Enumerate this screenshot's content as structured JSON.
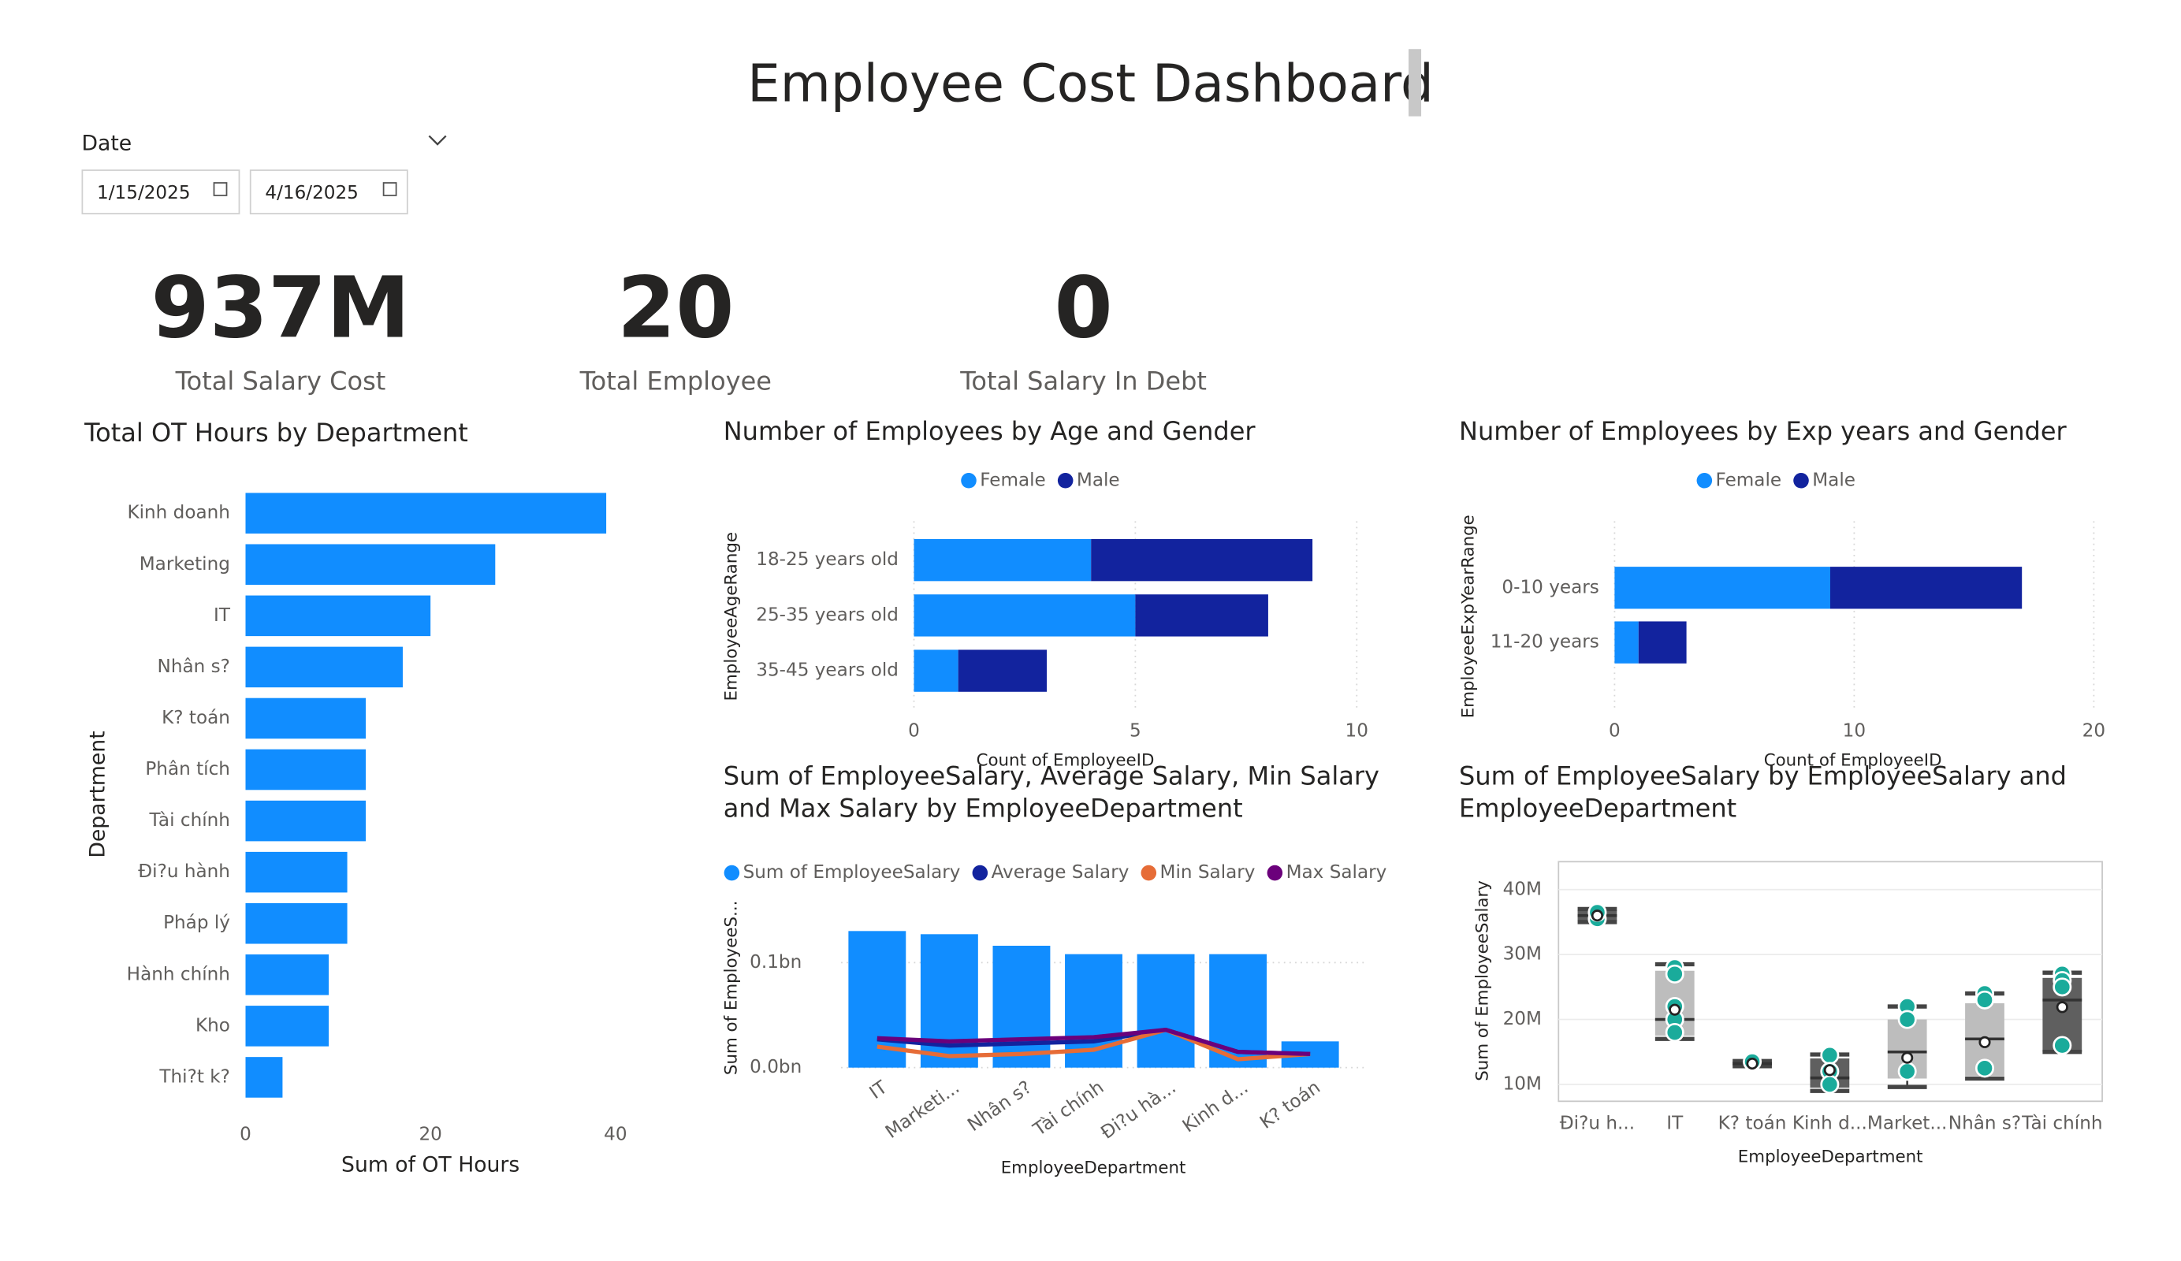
{
  "title": "Employee Cost Dashboard",
  "date_filter": {
    "label": "Date",
    "start": "1/15/2025",
    "end": "4/16/2025"
  },
  "kpis": [
    {
      "value": "937M",
      "label": "Total Salary Cost"
    },
    {
      "value": "20",
      "label": "Total Employee"
    },
    {
      "value": "0",
      "label": "Total Salary In Debt"
    }
  ],
  "chart_data": [
    {
      "type": "bar",
      "title": "Total OT Hours by Department",
      "categories": [
        "Kinh doanh",
        "Marketing",
        "IT",
        "Nhân s?",
        "K? toán",
        "Phân tích",
        "Tài chính",
        "Đi?u hành",
        "Pháp lý",
        "Hành chính",
        "Kho",
        "Thi?t k?"
      ],
      "values": [
        39,
        27,
        20,
        17,
        13,
        13,
        13,
        11,
        11,
        9,
        9,
        4
      ],
      "color": "#118DFF",
      "xlim": [
        0,
        40
      ],
      "xticks": [
        0,
        20,
        40
      ],
      "x_label": "Sum of OT Hours",
      "y_label": "Department",
      "grid": false
    },
    {
      "type": "bar",
      "title": "Number of Employees by Age and Gender",
      "categories": [
        "18-25 years old",
        "25-35 years old",
        "35-45 years old"
      ],
      "series": [
        {
          "name": "Female",
          "color": "#118DFF",
          "values": [
            4,
            5,
            1
          ]
        },
        {
          "name": "Male",
          "color": "#12239E",
          "values": [
            5,
            3,
            2
          ]
        }
      ],
      "xlim": [
        0,
        10
      ],
      "xticks": [
        0,
        5,
        10
      ],
      "x_label": "Count of EmployeeID",
      "y_label": "EmployeeAgeRange",
      "grid": true,
      "legend": "top-center"
    },
    {
      "type": "bar",
      "title": "Number of Employees by Exp years and Gender",
      "categories": [
        "0-10 years",
        "11-20 years"
      ],
      "series": [
        {
          "name": "Female",
          "color": "#118DFF",
          "values": [
            9,
            1
          ]
        },
        {
          "name": "Male",
          "color": "#12239E",
          "values": [
            8,
            2
          ]
        }
      ],
      "xlim": [
        0,
        20
      ],
      "xticks": [
        0,
        10,
        20
      ],
      "x_label": "Count of EmployeeID",
      "y_label": "EmployeeExpYearRange",
      "grid": true,
      "legend": "top-center"
    },
    {
      "type": "combo",
      "title": "Sum of EmployeeSalary, Average Salary, Min Salary and Max Salary by EmployeeDepartment",
      "categories": [
        "IT",
        "Marketi...",
        "Nhân s?",
        "Tài chính",
        "Đi?u hà...",
        "Kinh d...",
        "K? toán"
      ],
      "series": [
        {
          "name": "Sum of EmployeeSalary",
          "color": "#118DFF",
          "mark": "bar",
          "values": [
            130000000,
            127000000,
            116000000,
            108000000,
            108000000,
            108000000,
            25000000
          ]
        },
        {
          "name": "Average Salary",
          "color": "#12239E",
          "mark": "line",
          "values": [
            27000000,
            21000000,
            23000000,
            25000000,
            36000000,
            15000000,
            13000000
          ]
        },
        {
          "name": "Min Salary",
          "color": "#E66C37",
          "mark": "line",
          "values": [
            20000000,
            11000000,
            13000000,
            17000000,
            36000000,
            8000000,
            13000000
          ]
        },
        {
          "name": "Max Salary",
          "color": "#6B007B",
          "mark": "line",
          "values": [
            28000000,
            25000000,
            27000000,
            29000000,
            36000000,
            15000000,
            13000000
          ]
        }
      ],
      "ylim": [
        0,
        140000000
      ],
      "yticks": [
        {
          "value": 0,
          "label": "0.0bn"
        },
        {
          "value": 100000000,
          "label": "0.1bn"
        }
      ],
      "x_label": "EmployeeDepartment",
      "y_label": "Sum of EmployeeS...",
      "grid": true,
      "legend": "top-left"
    },
    {
      "type": "box",
      "title": "Sum of EmployeeSalary by EmployeeSalary and EmployeeDepartment",
      "categories": [
        "Đi?u h...",
        "IT",
        "K? toán",
        "Kinh d...",
        "Market...",
        "Nhân s?",
        "Tài chính"
      ],
      "boxes": [
        {
          "min": 35000000,
          "q1": 35200000,
          "median": 36000000,
          "q3": 36800000,
          "max": 37000000,
          "mean": 36000000,
          "points": [
            35500000,
            36500000
          ],
          "color": "#5f5f5f"
        },
        {
          "min": 17000000,
          "q1": 17500000,
          "median": 20000000,
          "q3": 27500000,
          "max": 28500000,
          "mean": 21500000,
          "points": [
            28000000,
            27000000,
            22000000,
            20000000,
            18000000
          ],
          "color": "#bdbdbd"
        },
        {
          "min": 12800000,
          "q1": 12900000,
          "median": 13200000,
          "q3": 13500000,
          "max": 13600000,
          "mean": 13200000,
          "points": [
            13500000
          ],
          "color": "#5f5f5f"
        },
        {
          "min": 9000000,
          "q1": 9500000,
          "median": 11000000,
          "q3": 14000000,
          "max": 14600000,
          "mean": 12200000,
          "points": [
            14500000,
            12000000,
            10000000
          ],
          "color": "#5f5f5f"
        },
        {
          "min": 9600000,
          "q1": 10900000,
          "median": 15000000,
          "q3": 20000000,
          "max": 22000000,
          "mean": 14100000,
          "points": [
            22000000,
            20000000,
            12000000
          ],
          "color": "#bdbdbd"
        },
        {
          "min": 10900000,
          "q1": 11300000,
          "median": 17000000,
          "q3": 22500000,
          "max": 24000000,
          "mean": 16500000,
          "points": [
            24000000,
            23000000,
            12500000
          ],
          "color": "#bdbdbd"
        },
        {
          "min": 15000000,
          "q1": 15000000,
          "median": 23000000,
          "q3": 26400000,
          "max": 27200000,
          "mean": 21900000,
          "points": [
            27000000,
            26000000,
            25000000,
            16000000
          ],
          "color": "#5f5f5f"
        }
      ],
      "point_color": "#1AAB9B",
      "ylim": [
        7400000,
        44300000
      ],
      "yticks": [
        {
          "value": 10000000,
          "label": "10M"
        },
        {
          "value": 20000000,
          "label": "20M"
        },
        {
          "value": 30000000,
          "label": "30M"
        },
        {
          "value": 40000000,
          "label": "40M"
        }
      ],
      "x_label": "EmployeeDepartment",
      "y_label": "Sum of EmployeeSalary",
      "grid": true
    }
  ]
}
